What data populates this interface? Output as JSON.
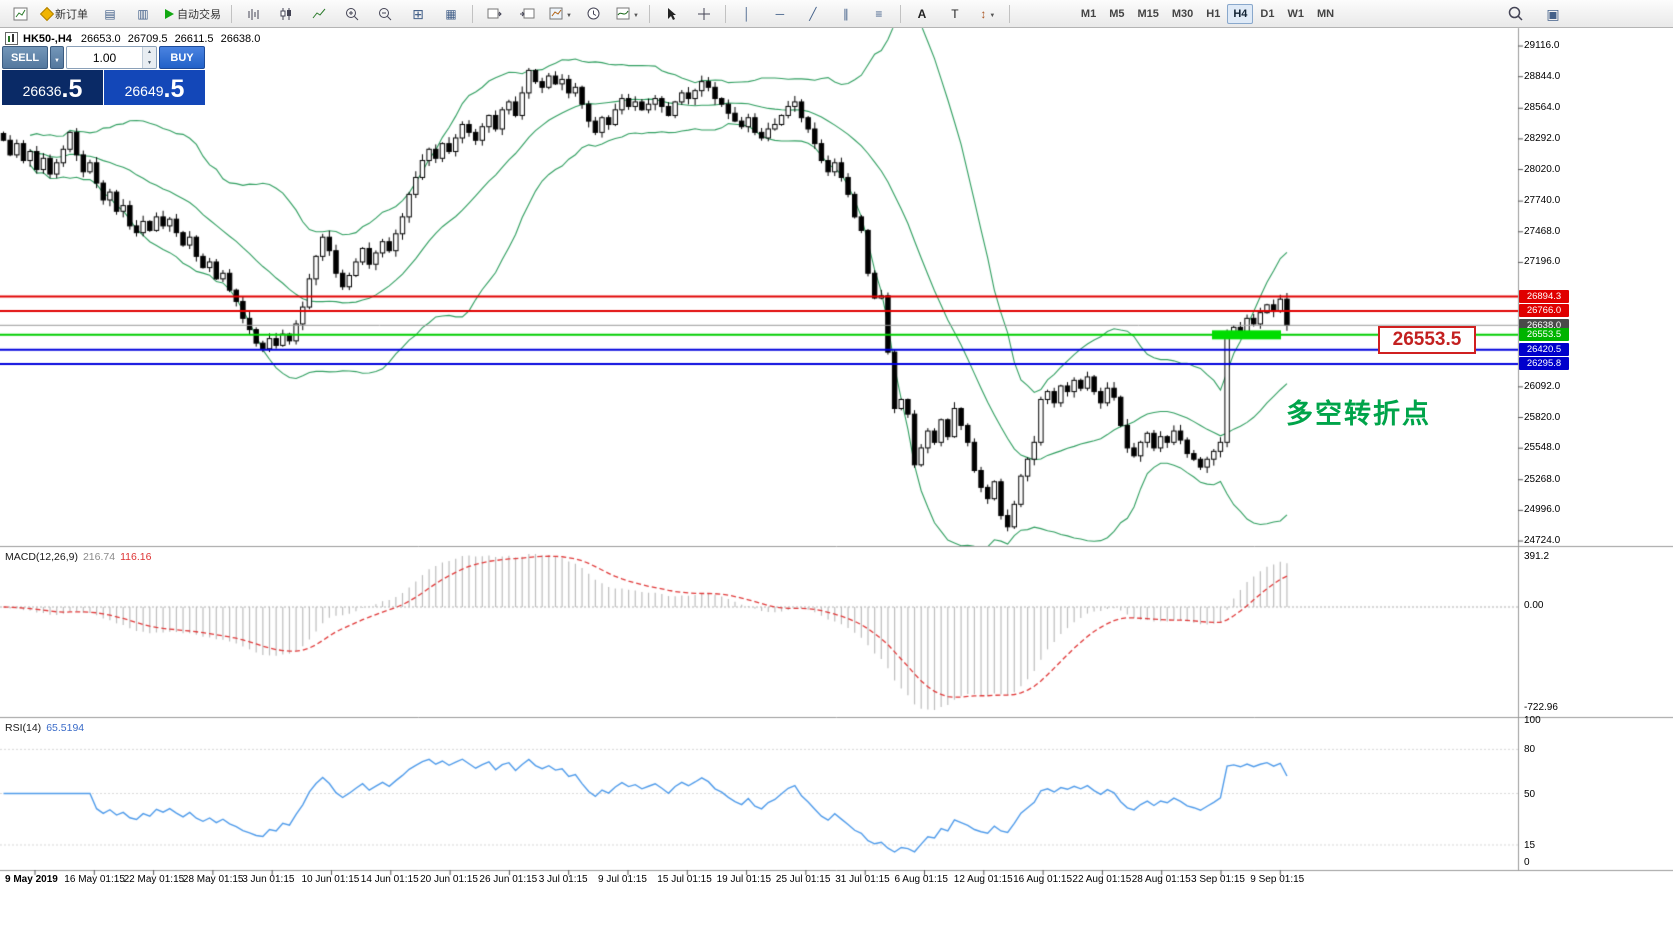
{
  "toolbar": {
    "new_order_label": "新订单",
    "autotrading_label": "自动交易",
    "timeframes": [
      "M1",
      "M5",
      "M15",
      "M30",
      "H1",
      "H4",
      "D1",
      "W1",
      "MN"
    ],
    "active_timeframe": "H4"
  },
  "header": {
    "symbol_period": "HK50-,H4",
    "open": "26653.0",
    "high": "26709.5",
    "low": "26611.5",
    "close": "26638.0"
  },
  "one_click": {
    "sell_label": "SELL",
    "buy_label": "BUY",
    "volume": "1.00",
    "sell_price_main": "26636",
    "sell_price_frac": ".5",
    "buy_price_main": "26649",
    "buy_price_frac": ".5"
  },
  "price_axis": {
    "labels": [
      "29116.0",
      "28844.0",
      "28564.0",
      "28292.0",
      "28020.0",
      "27740.0",
      "27468.0",
      "27196.0",
      "26092.0",
      "25820.0",
      "25548.0",
      "25268.0",
      "24996.0",
      "24724.0"
    ]
  },
  "price_lines": [
    {
      "label": "26894.3",
      "price": 26894.3,
      "color": "#e00000",
      "tag_color": "#e00000",
      "width": 2
    },
    {
      "label": "26766.0",
      "price": 26766.0,
      "color": "#e00000",
      "tag_color": "#e00000",
      "width": 2
    },
    {
      "label": "26638.0",
      "price": 26638.0,
      "color": "#9a9a9a",
      "tag_color": "#4a4a4a",
      "width": 1
    },
    {
      "label": "26553.5",
      "price": 26553.5,
      "color": "#00ce00",
      "tag_color": "#00b400",
      "width": 2
    },
    {
      "label": "26420.5",
      "price": 26420.5,
      "color": "#0000dd",
      "tag_color": "#0000cc",
      "width": 2
    },
    {
      "label": "26295.8",
      "price": 26295.8,
      "color": "#0000dd",
      "tag_color": "#0000cc",
      "width": 2
    }
  ],
  "annotations": {
    "price_box": "26553.5",
    "turning_point": "多空转折点",
    "highlight_color": "#00dd00"
  },
  "macd_panel": {
    "name": "MACD(12,26,9)",
    "value_main": "216.74",
    "value_signal": "116.16",
    "axis": [
      "391.2",
      "0.00",
      "-722.96"
    ],
    "histogram_color": "#bdbdbd",
    "signal_color": "#e03a3a"
  },
  "rsi_panel": {
    "name": "RSI(14)",
    "value": "65.5194",
    "axis": [
      "100",
      "80",
      "50",
      "15",
      "0"
    ],
    "line_color": "#4f9bea"
  },
  "chart_data": {
    "type": "candlestick",
    "title": "HK50-,H4 26653.0 26709.5 26611.5 26638.0",
    "symbol": "HK50-",
    "timeframe": "H4",
    "visible_price_range": [
      24680,
      29276
    ],
    "bollinger": {
      "period": 20,
      "deviation": 2,
      "color": "#2f9e5f"
    },
    "x_labels": [
      "9 May 2019",
      "16 May 01:15",
      "22 May 01:15",
      "28 May 01:15",
      "3 Jun 01:15",
      "10 Jun 01:15",
      "14 Jun 01:15",
      "20 Jun 01:15",
      "26 Jun 01:15",
      "3 Jul 01:15",
      "9 Jul 01:15",
      "15 Jul 01:15",
      "19 Jul 01:15",
      "25 Jul 01:15",
      "31 Jul 01:15",
      "6 Aug 01:15",
      "12 Aug 01:15",
      "16 Aug 01:15",
      "22 Aug 01:15",
      "28 Aug 01:15",
      "3 Sep 01:15",
      "9 Sep 01:15"
    ],
    "closes": [
      28280,
      28150,
      28250,
      28100,
      28180,
      28020,
      28120,
      27980,
      28080,
      28200,
      28350,
      28150,
      28000,
      28080,
      27900,
      27750,
      27820,
      27650,
      27700,
      27520,
      27460,
      27560,
      27480,
      27600,
      27520,
      27580,
      27460,
      27350,
      27420,
      27250,
      27150,
      27200,
      27050,
      27100,
      26950,
      26850,
      26700,
      26600,
      26480,
      26430,
      26520,
      26460,
      26560,
      26500,
      26650,
      26800,
      27050,
      27250,
      27420,
      27300,
      27100,
      26980,
      27080,
      27200,
      27320,
      27180,
      27280,
      27380,
      27300,
      27450,
      27600,
      27800,
      27950,
      28100,
      28200,
      28120,
      28250,
      28180,
      28300,
      28420,
      28350,
      28280,
      28400,
      28500,
      28380,
      28550,
      28620,
      28500,
      28700,
      28900,
      28800,
      28750,
      28850,
      28780,
      28820,
      28700,
      28750,
      28600,
      28450,
      28350,
      28480,
      28420,
      28550,
      28650,
      28580,
      28620,
      28550,
      28600,
      28650,
      28580,
      28500,
      28620,
      28700,
      28650,
      28720,
      28800,
      28750,
      28650,
      28600,
      28520,
      28450,
      28400,
      28480,
      28350,
      28300,
      28380,
      28420,
      28500,
      28580,
      28620,
      28480,
      28380,
      28250,
      28100,
      28000,
      28080,
      27950,
      27800,
      27600,
      27480,
      27100,
      26880,
      26900,
      26400,
      25900,
      25980,
      25850,
      25400,
      25550,
      25700,
      25600,
      25800,
      25650,
      25900,
      25750,
      25600,
      25350,
      25200,
      25100,
      25250,
      24950,
      24850,
      25050,
      25300,
      25450,
      25600,
      25980,
      26050,
      25950,
      26100,
      26050,
      26150,
      26080,
      26180,
      26050,
      25950,
      26080,
      26000,
      25750,
      25550,
      25480,
      25600,
      25680,
      25550,
      25650,
      25600,
      25700,
      25620,
      25500,
      25450,
      25380,
      25450,
      25520,
      25600,
      26560,
      26620,
      26580,
      26700,
      26650,
      26750,
      26820,
      26760,
      26870,
      26638
    ]
  }
}
